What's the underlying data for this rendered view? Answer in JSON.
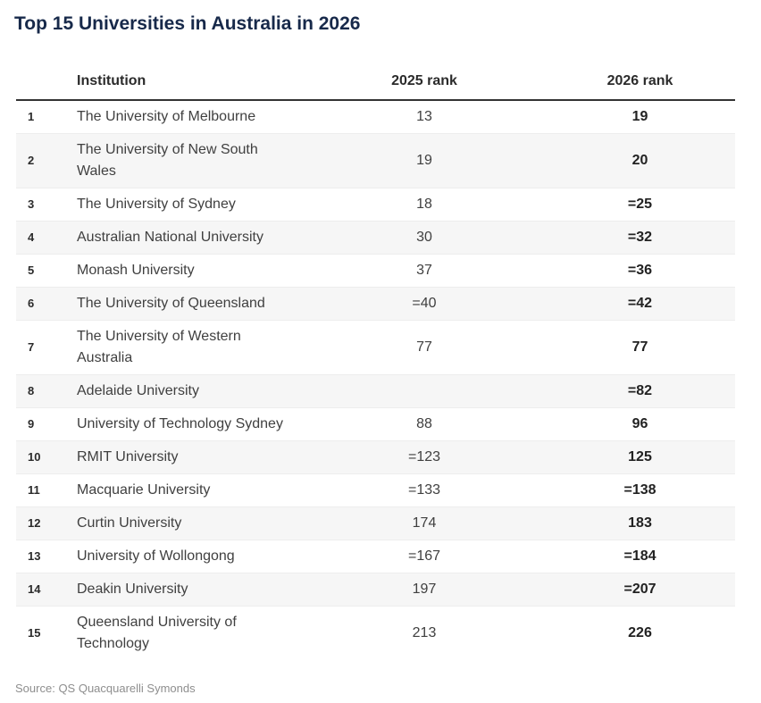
{
  "chart_data": {
    "type": "table",
    "title": "Top 15 Universities in Australia in 2026",
    "columns": {
      "number": "",
      "institution": "Institution",
      "rank_2025": "2025 rank",
      "rank_2026": "2026 rank"
    },
    "rows": [
      {
        "no": "1",
        "institution": "The University of Melbourne",
        "rank_2025": "13",
        "rank_2026": "19"
      },
      {
        "no": "2",
        "institution": "The University of New South Wales",
        "rank_2025": "19",
        "rank_2026": "20"
      },
      {
        "no": "3",
        "institution": "The University of Sydney",
        "rank_2025": "18",
        "rank_2026": "=25"
      },
      {
        "no": "4",
        "institution": "Australian National University",
        "rank_2025": "30",
        "rank_2026": "=32"
      },
      {
        "no": "5",
        "institution": "Monash University",
        "rank_2025": "37",
        "rank_2026": "=36"
      },
      {
        "no": "6",
        "institution": "The University of Queensland",
        "rank_2025": "=40",
        "rank_2026": "=42"
      },
      {
        "no": "7",
        "institution": "The University of Western Australia",
        "rank_2025": "77",
        "rank_2026": "77"
      },
      {
        "no": "8",
        "institution": "Adelaide University",
        "rank_2025": "",
        "rank_2026": "=82"
      },
      {
        "no": "9",
        "institution": "University of Technology Sydney",
        "rank_2025": "88",
        "rank_2026": "96"
      },
      {
        "no": "10",
        "institution": "RMIT University",
        "rank_2025": "=123",
        "rank_2026": "125"
      },
      {
        "no": "11",
        "institution": "Macquarie University",
        "rank_2025": "=133",
        "rank_2026": "=138"
      },
      {
        "no": "12",
        "institution": "Curtin University",
        "rank_2025": "174",
        "rank_2026": "183"
      },
      {
        "no": "13",
        "institution": "University of Wollongong",
        "rank_2025": "=167",
        "rank_2026": "=184"
      },
      {
        "no": "14",
        "institution": "Deakin University",
        "rank_2025": "197",
        "rank_2026": "=207"
      },
      {
        "no": "15",
        "institution": "Queensland University of Technology",
        "rank_2025": "213",
        "rank_2026": "226"
      }
    ],
    "layout": {
      "striped_rows": "even rows shaded",
      "rank_2026_bold": true
    }
  },
  "footer": {
    "source_label": "Source:",
    "source_value": "QS Quacquarelli Symonds"
  },
  "colors": {
    "title_text": "#17294a",
    "header_text": "#2b2b2b",
    "header_border": "#333333",
    "row_stripe": "#f6f6f6",
    "row_separator": "#ededed",
    "body_text": "#404040",
    "bold_value_text": "#222222",
    "source_text": "#8e8e8e",
    "background": "#ffffff"
  }
}
